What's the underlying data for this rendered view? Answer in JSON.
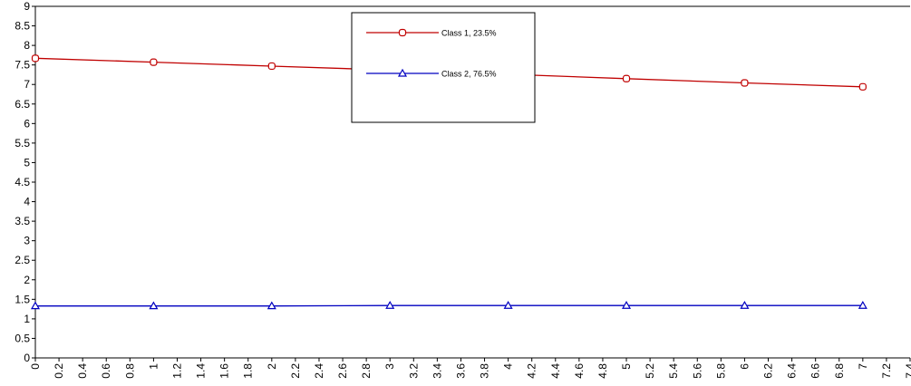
{
  "chart_data": {
    "type": "line",
    "title": "",
    "xlabel": "",
    "ylabel": "",
    "xlim": [
      0,
      7.4
    ],
    "ylim": [
      0,
      9
    ],
    "x_ticks": [
      "0",
      "0.2",
      "0.4",
      "0.6",
      "0.8",
      "1",
      "1.2",
      "1.4",
      "1.6",
      "1.8",
      "2",
      "2.2",
      "2.4",
      "2.6",
      "2.8",
      "3",
      "3.2",
      "3.4",
      "3.6",
      "3.8",
      "4",
      "4.2",
      "4.4",
      "4.6",
      "4.8",
      "5",
      "5.2",
      "5.4",
      "5.6",
      "5.8",
      "6",
      "6.2",
      "6.4",
      "6.6",
      "6.8",
      "7",
      "7.2",
      "7.4"
    ],
    "y_ticks": [
      "0",
      "0.5",
      "1",
      "1.5",
      "2",
      "2.5",
      "3",
      "3.5",
      "4",
      "4.5",
      "5",
      "5.5",
      "6",
      "6.5",
      "7",
      "7.5",
      "8",
      "8.5",
      "9"
    ],
    "grid": false,
    "legend_position": "top-center",
    "series": [
      {
        "name": "Class 1, 23.5%",
        "color": "#c00000",
        "marker": "circle",
        "x": [
          0,
          1,
          2,
          3,
          4,
          5,
          6,
          7
        ],
        "y": [
          7.67,
          7.57,
          7.47,
          7.37,
          7.26,
          7.15,
          7.04,
          6.94
        ]
      },
      {
        "name": "Class 2, 76.5%",
        "color": "#0000c0",
        "marker": "triangle",
        "x": [
          0,
          1,
          2,
          3,
          4,
          5,
          6,
          7
        ],
        "y": [
          1.33,
          1.33,
          1.33,
          1.34,
          1.34,
          1.34,
          1.34,
          1.34
        ]
      }
    ]
  }
}
